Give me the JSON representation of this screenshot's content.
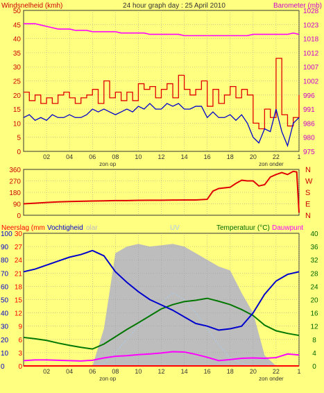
{
  "colors": {
    "background": "#ffff80",
    "wind_gust": "#e00000",
    "wind_avg": "#0000cc",
    "barometer": "#ff00ff",
    "direction": "#e00000",
    "rain": "#ff0000",
    "humidity": "#0000cc",
    "temperature": "#007700",
    "dewpoint": "#ff00ff",
    "solar": "#bdbdbd",
    "uv": "#aaccee",
    "axis_red": "#cc0000",
    "axis_green": "#006600",
    "axis_dark": "#333333",
    "axis_magenta": "#cc00cc"
  },
  "header": {
    "left_label": "Windsnelheid (kmh)",
    "title": "24 hour graph day : 25 April 2010",
    "right_label": "Barometer (mb)"
  },
  "time_axis": {
    "ticks": [
      "02",
      "04",
      "06",
      "08",
      "10",
      "12",
      "14",
      "16",
      "18",
      "20",
      "22",
      "1"
    ],
    "sunrise_label": "zon op",
    "sunset_label": "zon onder"
  },
  "chart_data": [
    {
      "type": "line",
      "panel": "wind",
      "xlabel": "",
      "ylabel": "Windsnelheid (kmh)",
      "ylim": [
        0,
        50
      ],
      "yticks": [
        "0",
        "5",
        "10",
        "15",
        "20",
        "25",
        "30",
        "35",
        "40",
        "45",
        "50"
      ],
      "y2label": "Barometer (mb)",
      "y2lim": [
        975,
        1028
      ],
      "y2ticks": [
        "975",
        "980",
        "986",
        "991",
        "996",
        "1002",
        "1007",
        "1012",
        "1018",
        "1023",
        "1028"
      ],
      "x": [
        0,
        0.5,
        1,
        1.5,
        2,
        2.5,
        3,
        3.5,
        4,
        4.5,
        5,
        5.5,
        6,
        6.5,
        7,
        7.5,
        8,
        8.5,
        9,
        9.5,
        10,
        10.5,
        11,
        11.5,
        12,
        12.5,
        13,
        13.5,
        14,
        14.5,
        15,
        15.5,
        16,
        16.5,
        17,
        17.5,
        18,
        18.5,
        19,
        19.5,
        20,
        20.5,
        21,
        21.5,
        22,
        22.5,
        23,
        23.5,
        24
      ],
      "series": [
        {
          "name": "gust",
          "axis": "left",
          "values": [
            21,
            18,
            20,
            17,
            19,
            17,
            20,
            21,
            19,
            17,
            19,
            20,
            22,
            17,
            25,
            19,
            21,
            18,
            21,
            18,
            24,
            22,
            23,
            19,
            22,
            24,
            19,
            27,
            22,
            20,
            22,
            25,
            16,
            22,
            17,
            20,
            23,
            19,
            22,
            20,
            10,
            8,
            15,
            12,
            33,
            13,
            9,
            12,
            20
          ]
        },
        {
          "name": "avg",
          "axis": "left",
          "values": [
            12,
            13,
            11,
            12,
            11,
            13,
            12,
            12,
            13,
            12,
            12,
            13,
            15,
            14,
            15,
            14,
            13,
            14,
            15,
            14,
            16,
            15,
            17,
            15,
            15,
            17,
            16,
            17,
            15,
            15,
            16,
            16,
            12,
            14,
            12,
            12,
            13,
            11,
            13,
            10,
            5,
            3,
            8,
            7,
            15,
            7,
            2,
            10,
            12
          ]
        },
        {
          "name": "barometer",
          "axis": "right",
          "values": [
            1023,
            1023,
            1023,
            1022.5,
            1022,
            1021.5,
            1021,
            1021,
            1021,
            1020.5,
            1020.5,
            1020.5,
            1020,
            1020,
            1020,
            1020,
            1020,
            1019.5,
            1019.5,
            1019.5,
            1019.5,
            1019.5,
            1019,
            1019,
            1019,
            1019,
            1019,
            1019,
            1018.5,
            1018.5,
            1018.5,
            1018.5,
            1018.5,
            1018.5,
            1018.5,
            1018.5,
            1018.5,
            1018.5,
            1018.5,
            1018.5,
            1019,
            1019,
            1019,
            1019,
            1019,
            1019,
            1019,
            1019.5,
            1019
          ]
        }
      ]
    },
    {
      "type": "line",
      "panel": "direction",
      "ylim": [
        0,
        360
      ],
      "yticks": [
        "0",
        "90",
        "180",
        "270",
        "360"
      ],
      "y2ticks": [
        "N",
        "E",
        "S",
        "W",
        "N"
      ],
      "x": [
        0,
        1,
        2,
        3,
        4,
        5,
        6,
        7,
        8,
        9,
        10,
        11,
        12,
        13,
        14,
        15,
        16,
        16.5,
        17,
        18,
        18.5,
        19,
        19.5,
        20,
        20.5,
        21,
        21.5,
        22,
        22.5,
        23,
        23.5,
        23.8,
        24
      ],
      "series": [
        {
          "name": "direction",
          "values": [
            90,
            95,
            100,
            105,
            108,
            110,
            112,
            113,
            115,
            115,
            117,
            118,
            118,
            119,
            120,
            120,
            125,
            190,
            210,
            220,
            250,
            275,
            270,
            270,
            230,
            240,
            300,
            320,
            335,
            320,
            345,
            340,
            20
          ]
        }
      ]
    },
    {
      "type": "line",
      "panel": "temperature",
      "header_labels": {
        "rain": "Neerslag (mm",
        "humidity": "Vochtigheid",
        "solar": "olar",
        "uv": "UV",
        "temperature": "Temperatuur (°C)",
        "dewpoint": "Dauwpunt"
      },
      "axes": {
        "humidity_ticks": [
          "0",
          "10",
          "20",
          "30",
          "40",
          "50",
          "60",
          "70",
          "80",
          "90",
          "100"
        ],
        "rain_ticks": [
          "0",
          "3",
          "6",
          "9",
          "12",
          "15",
          "18",
          "21",
          "24",
          "27",
          "30"
        ],
        "temperature_ticks": [
          "0",
          "4",
          "8",
          "12",
          "16",
          "20",
          "24",
          "28",
          "32",
          "36",
          "40"
        ],
        "humidity_lim": [
          0,
          100
        ],
        "temperature_lim": [
          0,
          40
        ],
        "rain_lim": [
          0,
          30
        ]
      },
      "x": [
        0,
        1,
        2,
        3,
        4,
        5,
        6,
        7,
        8,
        9,
        10,
        11,
        12,
        13,
        14,
        15,
        16,
        17,
        18,
        19,
        20,
        21,
        22,
        23,
        24
      ],
      "series": [
        {
          "name": "humidity",
          "axis": "humidity",
          "values": [
            71,
            73,
            76,
            79,
            82,
            84,
            87,
            83,
            71,
            63,
            56,
            50,
            46,
            42,
            37,
            32,
            30,
            27,
            28,
            30,
            40,
            54,
            64,
            69,
            71
          ]
        },
        {
          "name": "temperature",
          "axis": "temperature",
          "values": [
            8.6,
            8.2,
            7.7,
            6.9,
            6.2,
            5.6,
            5.1,
            6.6,
            8.8,
            11.0,
            13.0,
            15.1,
            17.2,
            18.5,
            19.4,
            19.8,
            20.4,
            19.5,
            18.5,
            17.0,
            15.2,
            12.3,
            10.6,
            9.8,
            9.2
          ]
        },
        {
          "name": "dewpoint",
          "axis": "temperature",
          "values": [
            1.6,
            1.8,
            1.8,
            1.7,
            1.6,
            1.5,
            1.7,
            2.4,
            2.9,
            3.1,
            3.4,
            3.6,
            3.9,
            4.3,
            4.2,
            3.5,
            2.6,
            1.6,
            1.9,
            2.3,
            2.4,
            2.3,
            2.5,
            3.6,
            3.3
          ]
        },
        {
          "name": "solar",
          "axis": "humidity",
          "values": [
            0,
            0,
            0,
            0,
            0,
            0,
            0,
            28,
            85,
            90,
            92,
            90,
            91,
            92,
            90,
            85,
            80,
            75,
            72,
            55,
            40,
            8,
            0,
            0,
            0
          ]
        },
        {
          "name": "uv",
          "axis": "humidity",
          "values": [
            0,
            0,
            0,
            0,
            0,
            0,
            0,
            2,
            10,
            20,
            30,
            40,
            48,
            55,
            50,
            40,
            28,
            16,
            6,
            2,
            0,
            0,
            0,
            0,
            0
          ]
        },
        {
          "name": "rain",
          "axis": "rain",
          "values": [
            0,
            0,
            0,
            0,
            0,
            0,
            0,
            0,
            0,
            0,
            0,
            0,
            0,
            0,
            0,
            0,
            0,
            0,
            0,
            0,
            0,
            0,
            0,
            0,
            0
          ]
        }
      ]
    }
  ]
}
